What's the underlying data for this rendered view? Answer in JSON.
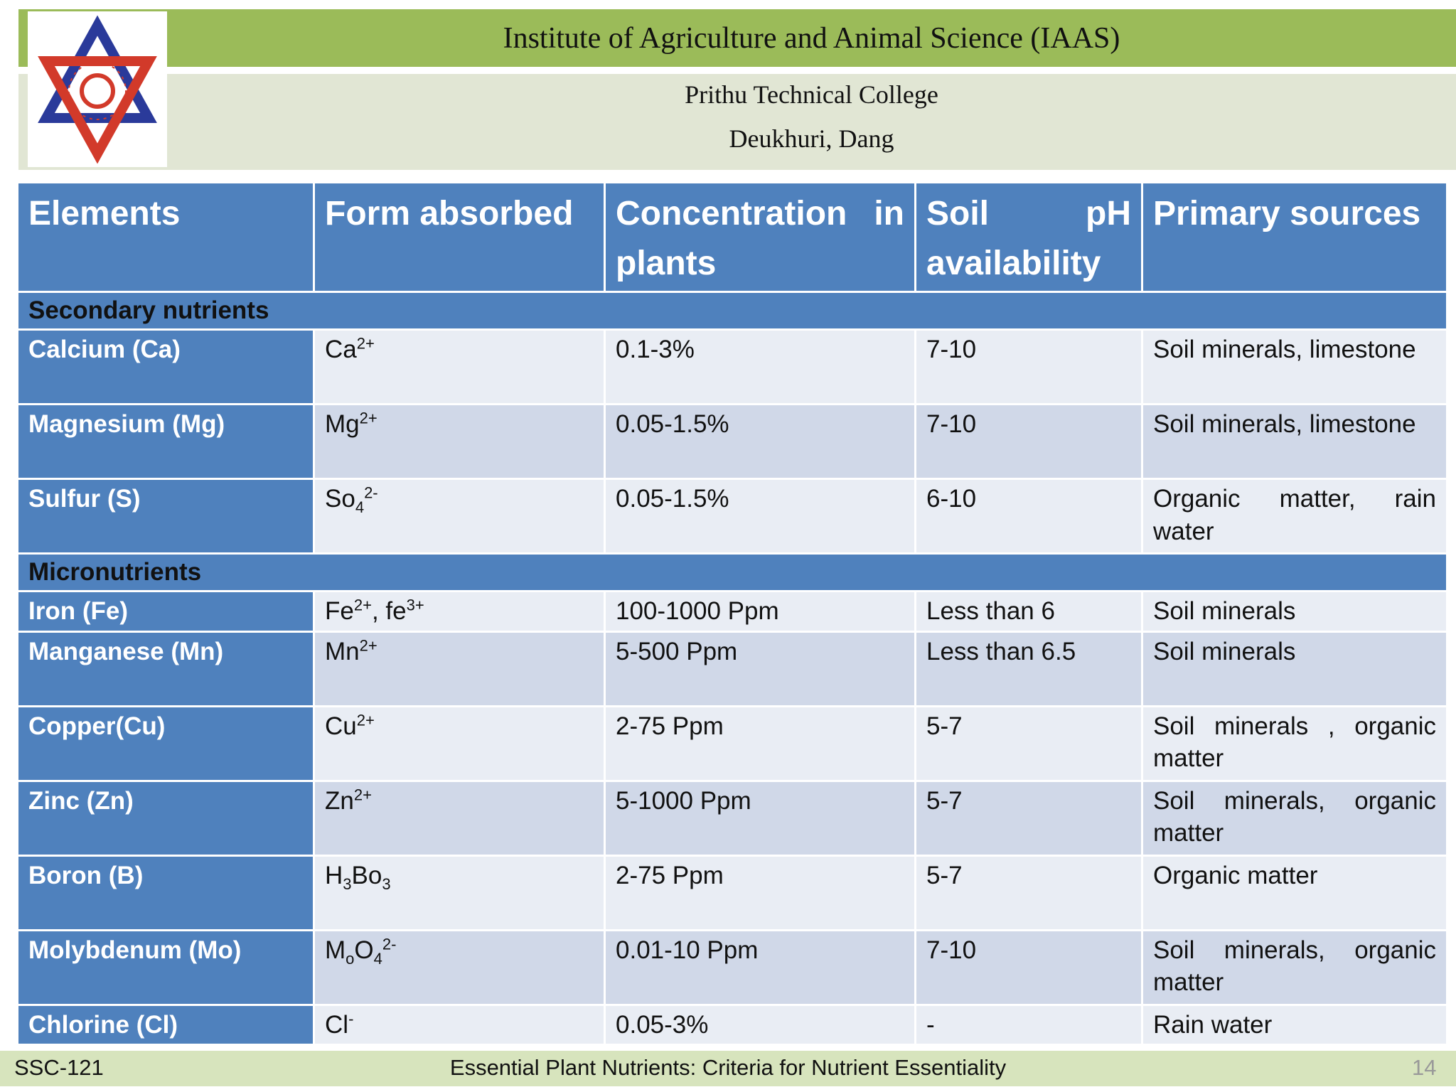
{
  "header": {
    "title": "Institute of Agriculture and Animal Science (IAAS)",
    "college": "Prithu Technical College",
    "location": "Deukhuri, Dang",
    "logo": "Tribhuvan University emblem",
    "logo_text": [
      "KATHMANDU",
      "NEPAL"
    ]
  },
  "colors": {
    "green": "#9bbb59",
    "light": "#e1e6d4",
    "blue": "#4f81bd",
    "row_light": "#e9edf4",
    "row_dark": "#d0d8e8"
  },
  "table": {
    "columns": [
      "Elements",
      "Form absorbed",
      "Concentration in plants",
      "Soil pH availability",
      "Primary sources"
    ],
    "rows": [
      {
        "section": "Secondary nutrients"
      },
      {
        "cells": [
          "Calcium (Ca)",
          [
            [
              "t",
              "Ca"
            ],
            [
              "sup",
              "2+"
            ]
          ],
          "0.1-3%",
          "7-10",
          "Soil minerals, limestone"
        ],
        "tall": true
      },
      {
        "cells": [
          "Magnesium (Mg)",
          [
            [
              "t",
              "Mg"
            ],
            [
              "sup",
              "2+"
            ]
          ],
          "0.05-1.5%",
          "7-10",
          "Soil minerals, limestone"
        ],
        "tall": true
      },
      {
        "cells": [
          "Sulfur (S)",
          [
            [
              "t",
              "So"
            ],
            [
              "sub",
              "4"
            ],
            [
              "sup",
              "2-"
            ]
          ],
          "0.05-1.5%",
          "6-10",
          "Organic matter, rain water"
        ],
        "tall": true
      },
      {
        "section": "Micronutrients"
      },
      {
        "cells": [
          "Iron (Fe)",
          [
            [
              "t",
              "Fe"
            ],
            [
              "sup",
              "2+"
            ],
            [
              "t",
              ", fe"
            ],
            [
              "sup",
              "3+"
            ]
          ],
          "100-1000 Ppm",
          "Less than 6",
          "Soil minerals"
        ]
      },
      {
        "cells": [
          "Manganese (Mn)",
          [
            [
              "t",
              "Mn"
            ],
            [
              "sup",
              "2+"
            ]
          ],
          "5-500 Ppm",
          "Less than 6.5",
          "Soil minerals"
        ],
        "tall": true
      },
      {
        "cells": [
          "Copper(Cu)",
          [
            [
              "t",
              "Cu"
            ],
            [
              "sup",
              "2+"
            ]
          ],
          "2-75 Ppm",
          "5-7",
          "Soil minerals , organic matter"
        ],
        "tall": true
      },
      {
        "cells": [
          "Zinc (Zn)",
          [
            [
              "t",
              "Zn"
            ],
            [
              "sup",
              "2+"
            ]
          ],
          "5-1000 Ppm",
          "5-7",
          "Soil minerals, organic matter"
        ],
        "tall": true
      },
      {
        "cells": [
          "Boron (B)",
          [
            [
              "t",
              "H"
            ],
            [
              "sub",
              "3"
            ],
            [
              "t",
              "Bo"
            ],
            [
              "sub",
              "3"
            ]
          ],
          "2-75 Ppm",
          "5-7",
          "Organic matter"
        ],
        "tall": true
      },
      {
        "cells": [
          "Molybdenum (Mo)",
          [
            [
              "t",
              "M"
            ],
            [
              "sub",
              "o"
            ],
            [
              "t",
              "O"
            ],
            [
              "sub",
              "4"
            ],
            [
              "sup",
              "2-"
            ]
          ],
          "0.01-10 Ppm",
          "7-10",
          "Soil minerals, organic matter"
        ],
        "tall": true
      },
      {
        "cells": [
          "Chlorine (Cl)",
          [
            [
              "t",
              "Cl"
            ],
            [
              "sup",
              "-"
            ]
          ],
          "0.05-3%",
          "-",
          "Rain water"
        ]
      }
    ]
  },
  "footer": {
    "course": "SSC-121",
    "topic": "Essential Plant Nutrients: Criteria for Nutrient Essentiality",
    "page": "14"
  }
}
